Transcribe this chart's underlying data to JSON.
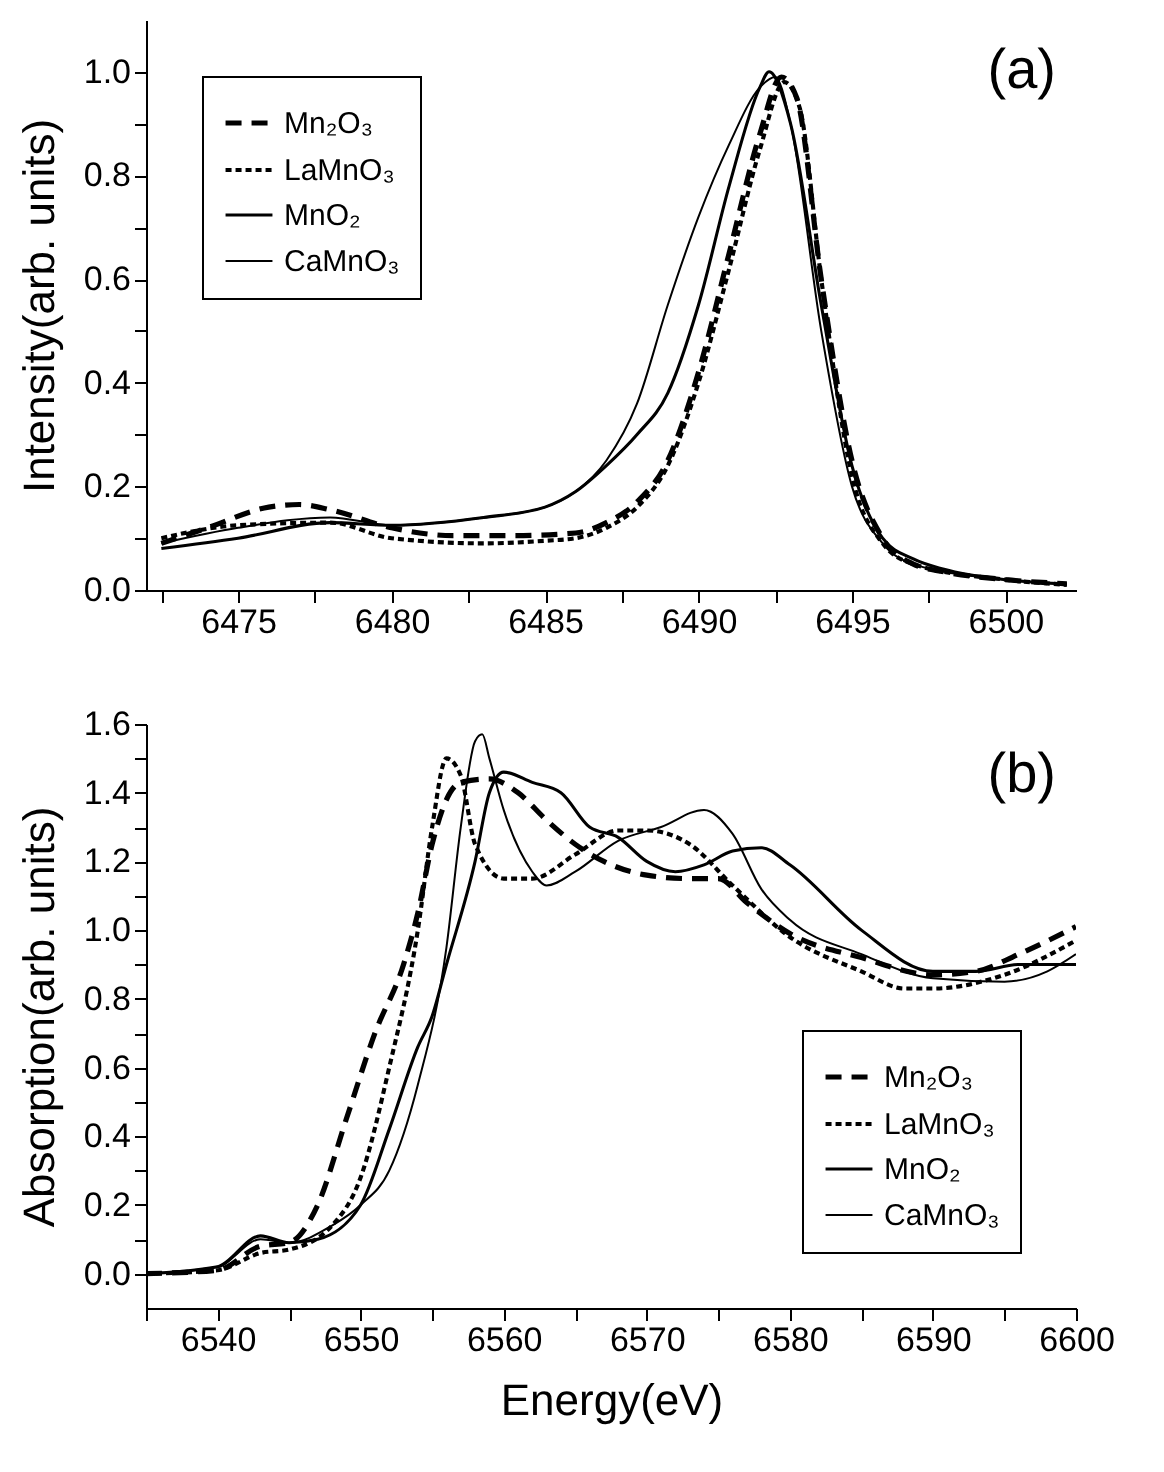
{
  "chart_data": [
    {
      "type": "line",
      "ylabel": "Intensity(arb. units)",
      "annotations": [
        "(a)"
      ],
      "legend": "top left",
      "grid": false,
      "xlim": [
        6472,
        6502.3
      ],
      "ylim": [
        0,
        1.1
      ],
      "xticks": [
        {
          "value": 6472.5,
          "label": null
        },
        6475,
        {
          "value": 6477.5,
          "label": null
        },
        6480,
        {
          "value": 6482.5,
          "label": null
        },
        6485,
        {
          "value": 6487.5,
          "label": null
        },
        6490,
        {
          "value": 6492.5,
          "label": null
        },
        6495,
        {
          "value": 6497.5,
          "label": null
        },
        6500
      ],
      "yticks": [
        {
          "value": 0,
          "label": "0.0"
        },
        {
          "value": 0.1,
          "label": null
        },
        {
          "value": 0.2,
          "label": "0.2"
        },
        {
          "value": 0.3,
          "label": null
        },
        {
          "value": 0.4,
          "label": "0.4"
        },
        {
          "value": 0.5,
          "label": null
        },
        {
          "value": 0.6,
          "label": "0.6"
        },
        {
          "value": 0.7,
          "label": null
        },
        {
          "value": 0.8,
          "label": "0.8"
        },
        {
          "value": 0.9,
          "label": null
        },
        {
          "value": 1,
          "label": "1.0"
        }
      ],
      "series": [
        {
          "name": "Mn₂O₃",
          "color": "#000000",
          "line_style": "dashed",
          "x": [
            6472.5,
            6474,
            6476,
            6477,
            6478,
            6480,
            6482,
            6484,
            6486,
            6487,
            6488,
            6489,
            6490,
            6491,
            6492,
            6492.7,
            6493.2,
            6494,
            6495,
            6496,
            6497,
            6498,
            6500,
            6502
          ],
          "values": [
            0.09,
            0.12,
            0.16,
            0.165,
            0.155,
            0.12,
            0.105,
            0.105,
            0.11,
            0.13,
            0.17,
            0.25,
            0.42,
            0.65,
            0.88,
            0.99,
            0.95,
            0.6,
            0.25,
            0.1,
            0.05,
            0.035,
            0.02,
            0.012
          ]
        },
        {
          "name": "LaMnO₃",
          "color": "#000000",
          "line_style": "dotted",
          "x": [
            6472.5,
            6475,
            6478,
            6480,
            6483,
            6485,
            6486,
            6487,
            6488,
            6489,
            6490,
            6491,
            6492,
            6492.8,
            6493.3,
            6494,
            6495,
            6496,
            6497,
            6500,
            6502
          ],
          "values": [
            0.1,
            0.125,
            0.13,
            0.1,
            0.09,
            0.095,
            0.1,
            0.12,
            0.16,
            0.24,
            0.4,
            0.62,
            0.85,
            0.98,
            0.93,
            0.6,
            0.22,
            0.09,
            0.05,
            0.02,
            0.01
          ]
        },
        {
          "name": "MnO₂",
          "color": "#000000",
          "line_style": "solid",
          "x": [
            6472.5,
            6475,
            6478,
            6480,
            6483,
            6485,
            6486,
            6487,
            6488,
            6489,
            6490,
            6491,
            6492,
            6492.3,
            6493,
            6494,
            6495,
            6496,
            6497,
            6498,
            6500,
            6502
          ],
          "values": [
            0.08,
            0.1,
            0.13,
            0.125,
            0.14,
            0.16,
            0.19,
            0.24,
            0.3,
            0.38,
            0.55,
            0.78,
            0.97,
            1.0,
            0.9,
            0.55,
            0.24,
            0.1,
            0.06,
            0.04,
            0.02,
            0.012
          ]
        },
        {
          "name": "CaMnO₃",
          "color": "#000000",
          "line_style": "solid",
          "x": [
            6472.5,
            6475,
            6478,
            6480,
            6483,
            6485,
            6486,
            6487,
            6488,
            6489,
            6490,
            6491,
            6492,
            6492.5,
            6493,
            6494,
            6495,
            6496,
            6497,
            6500,
            6502
          ],
          "values": [
            0.09,
            0.12,
            0.14,
            0.125,
            0.14,
            0.16,
            0.19,
            0.25,
            0.36,
            0.55,
            0.72,
            0.86,
            0.97,
            0.99,
            0.9,
            0.5,
            0.2,
            0.09,
            0.05,
            0.02,
            0.01
          ]
        }
      ]
    },
    {
      "type": "line",
      "xlabel": "Energy(eV)",
      "ylabel": "Absorption(arb. units)",
      "annotations": [
        "(b)"
      ],
      "legend": "bottom right",
      "grid": false,
      "xlim": [
        6535,
        6600
      ],
      "ylim": [
        -0.1,
        1.6
      ],
      "xticks": [
        {
          "value": 6535,
          "label": null
        },
        6540,
        {
          "value": 6545,
          "label": null
        },
        6550,
        {
          "value": 6555,
          "label": null
        },
        6560,
        {
          "value": 6565,
          "label": null
        },
        6570,
        {
          "value": 6575,
          "label": null
        },
        6580,
        {
          "value": 6585,
          "label": null
        },
        6590,
        {
          "value": 6595,
          "label": null
        },
        6600
      ],
      "yticks": [
        {
          "value": 0,
          "label": "0.0"
        },
        {
          "value": 0.1,
          "label": null
        },
        {
          "value": 0.2,
          "label": "0.2"
        },
        {
          "value": 0.3,
          "label": null
        },
        {
          "value": 0.4,
          "label": "0.4"
        },
        {
          "value": 0.5,
          "label": null
        },
        {
          "value": 0.6,
          "label": "0.6"
        },
        {
          "value": 0.7,
          "label": null
        },
        {
          "value": 0.8,
          "label": "0.8"
        },
        {
          "value": 0.9,
          "label": null
        },
        {
          "value": 1,
          "label": "1.0"
        },
        {
          "value": 1.1,
          "label": null
        },
        {
          "value": 1.2,
          "label": "1.2"
        },
        {
          "value": 1.3,
          "label": null
        },
        {
          "value": 1.4,
          "label": "1.4"
        },
        {
          "value": 1.5,
          "label": null
        },
        {
          "value": 1.6,
          "label": "1.6"
        }
      ],
      "series": [
        {
          "name": "Mn₂O₃",
          "color": "#000000",
          "line_style": "dashed",
          "x": [
            6535,
            6540,
            6543,
            6545,
            6547,
            6549,
            6551,
            6553,
            6554,
            6555,
            6556,
            6557,
            6559,
            6561,
            6563,
            6565,
            6567,
            6570,
            6573,
            6575,
            6577,
            6580,
            6585,
            6590,
            6593,
            6596,
            6600
          ],
          "values": [
            0,
            0.01,
            0.08,
            0.09,
            0.2,
            0.45,
            0.7,
            0.9,
            1.05,
            1.25,
            1.38,
            1.43,
            1.44,
            1.4,
            1.32,
            1.25,
            1.2,
            1.16,
            1.15,
            1.15,
            1.08,
            0.99,
            0.92,
            0.87,
            0.88,
            0.93,
            1.01
          ]
        },
        {
          "name": "LaMnO₃",
          "color": "#000000",
          "line_style": "dotted",
          "x": [
            6535,
            6540,
            6543,
            6545,
            6548,
            6550,
            6552,
            6554,
            6555,
            6556,
            6557,
            6558,
            6560,
            6562,
            6565,
            6568,
            6570,
            6573,
            6576,
            6580,
            6585,
            6588,
            6590,
            6595,
            6600
          ],
          "values": [
            0,
            0.01,
            0.06,
            0.07,
            0.14,
            0.28,
            0.6,
            1.0,
            1.3,
            1.5,
            1.45,
            1.25,
            1.15,
            1.15,
            1.22,
            1.29,
            1.29,
            1.25,
            1.13,
            0.98,
            0.88,
            0.83,
            0.83,
            0.87,
            0.97
          ]
        },
        {
          "name": "MnO₂",
          "color": "#000000",
          "line_style": "solid",
          "x": [
            6535,
            6540,
            6543,
            6545,
            6547,
            6550,
            6552,
            6554,
            6555,
            6556,
            6558,
            6559,
            6560,
            6562,
            6564,
            6566,
            6568,
            6570,
            6572,
            6574,
            6576,
            6578,
            6580,
            6585,
            6590,
            6593,
            6596,
            6600
          ],
          "values": [
            0,
            0.02,
            0.11,
            0.09,
            0.1,
            0.2,
            0.42,
            0.66,
            0.75,
            0.9,
            1.2,
            1.4,
            1.46,
            1.43,
            1.4,
            1.3,
            1.27,
            1.2,
            1.17,
            1.19,
            1.23,
            1.24,
            1.19,
            1.0,
            0.88,
            0.88,
            0.9,
            0.9
          ]
        },
        {
          "name": "CaMnO₃",
          "color": "#000000",
          "line_style": "solid",
          "x": [
            6535,
            6540,
            6543,
            6545,
            6548,
            6550,
            6552,
            6554,
            6556,
            6557,
            6558,
            6558.5,
            6559,
            6560,
            6562,
            6563,
            6565,
            6568,
            6571,
            6574,
            6576,
            6578,
            6580,
            6585,
            6590,
            6595,
            6598,
            6600
          ],
          "values": [
            0,
            0.02,
            0.1,
            0.09,
            0.14,
            0.2,
            0.3,
            0.55,
            0.95,
            1.3,
            1.55,
            1.57,
            1.5,
            1.35,
            1.17,
            1.13,
            1.17,
            1.26,
            1.3,
            1.35,
            1.28,
            1.12,
            1.03,
            0.93,
            0.86,
            0.85,
            0.88,
            0.93
          ]
        }
      ]
    }
  ]
}
